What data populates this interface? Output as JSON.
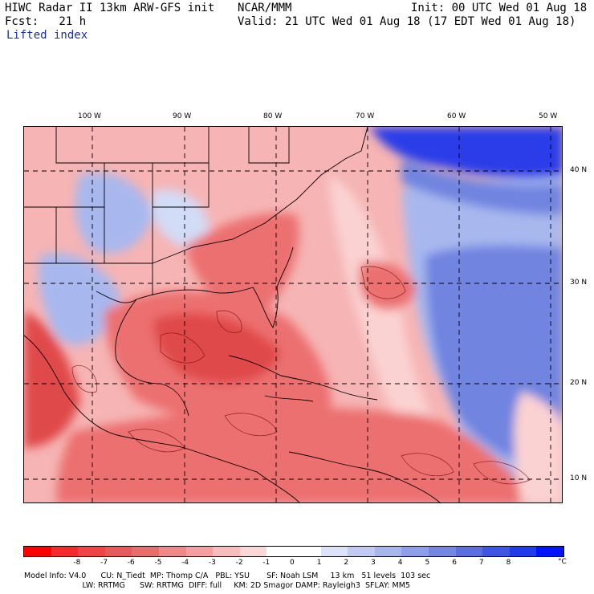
{
  "header": {
    "line1_left": "HIWC Radar II 13km ARW-GFS init",
    "line1_mid": "NCAR/MMM",
    "line1_right": "Init: 00 UTC Wed 01 Aug 18",
    "line2_left": "Fcst:   21 h",
    "line2_right": "Valid: 21 UTC Wed 01 Aug 18 (17 EDT Wed 01 Aug 18)",
    "field_name": "Lifted index"
  },
  "map": {
    "lon_labels": [
      "100 W",
      "90 W",
      "80 W",
      "70 W",
      "60 W",
      "50 W"
    ],
    "lat_labels": [
      "40 N",
      "30 N",
      "20 N",
      "10 N"
    ],
    "field_colors": {
      "strong_red": "#e04848",
      "red": "#ec7070",
      "light_red": "#f6a8a8",
      "pale_red": "#fbd2d2",
      "pale_blue": "#d2dcf6",
      "light_blue": "#a8b8ee",
      "blue": "#6f84e0",
      "strong_blue": "#2b3ee8"
    }
  },
  "colorbar": {
    "colors": [
      "#ff0000",
      "#f52a2a",
      "#ee4444",
      "#e85a5a",
      "#e86e6e",
      "#ef8888",
      "#f5a0a0",
      "#f8bcbc",
      "#fbd8d8",
      "#ffffff",
      "#ffffff",
      "#dce2f8",
      "#c0caf2",
      "#a8b6ee",
      "#8e9ee8",
      "#7486e2",
      "#5a6ee0",
      "#3e56e4",
      "#1e3cea",
      "#0014ff"
    ],
    "labels": [
      "-8",
      "-7",
      "-6",
      "-5",
      "-4",
      "-3",
      "-2",
      "-1",
      "0",
      "1",
      "2",
      "3",
      "4",
      "5",
      "6",
      "7",
      "8"
    ],
    "unit": "°C"
  },
  "model_info": {
    "line1": "Model Info: V4.0      CU: N_Tiedt  MP: Thomp C/A   PBL: YSU       SF: Noah LSM     13 km   51 levels  103 sec",
    "line2": "                        LW: RRTMG      SW: RRTMG  DIFF: full     KM: 2D Smagor DAMP: Rayleigh3  SFLAY: MM5"
  }
}
